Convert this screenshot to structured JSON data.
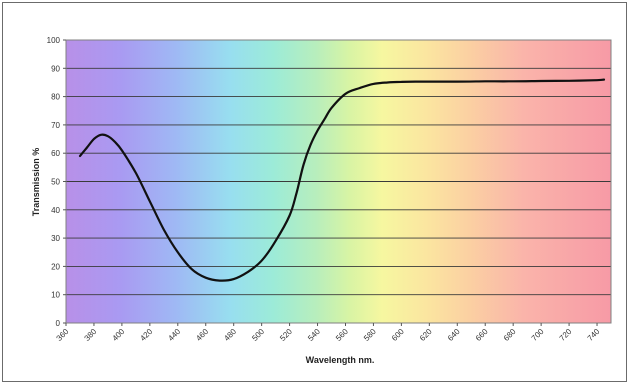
{
  "chart_data": {
    "type": "line",
    "title": "",
    "xlabel": "Wavelength nm.",
    "ylabel": "Transmission %",
    "xlim": [
      360,
      750
    ],
    "ylim": [
      0,
      100
    ],
    "x_ticks": [
      360,
      380,
      400,
      420,
      440,
      460,
      480,
      500,
      520,
      540,
      560,
      580,
      600,
      620,
      640,
      660,
      680,
      700,
      720,
      740
    ],
    "y_ticks": [
      0,
      10,
      20,
      30,
      40,
      50,
      60,
      70,
      80,
      90,
      100
    ],
    "grid": "horizontal",
    "background": "visible spectrum gradient",
    "series": [
      {
        "color": "#111111",
        "x": [
          370,
          375,
          380,
          385,
          390,
          395,
          400,
          410,
          420,
          430,
          440,
          450,
          460,
          470,
          480,
          490,
          500,
          510,
          520,
          525,
          530,
          535,
          540,
          545,
          550,
          560,
          570,
          580,
          590,
          600,
          610,
          620,
          640,
          660,
          680,
          700,
          720,
          740,
          745
        ],
        "y": [
          59,
          62,
          65,
          66.5,
          66,
          64,
          61,
          53,
          43,
          33,
          25,
          19,
          16,
          15,
          15.5,
          18,
          22,
          29,
          38,
          46,
          56,
          63,
          68,
          72,
          76,
          81,
          83,
          84.5,
          85,
          85.2,
          85.3,
          85.3,
          85.3,
          85.4,
          85.4,
          85.5,
          85.6,
          85.8,
          86
        ]
      }
    ]
  }
}
